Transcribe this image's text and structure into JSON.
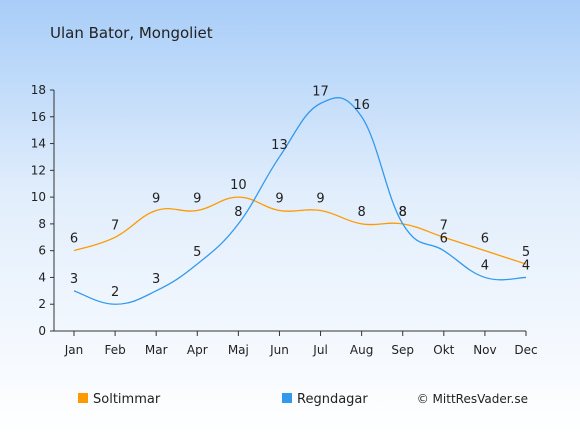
{
  "chart_data": {
    "type": "line",
    "title": "Ulan Bator, Mongoliet",
    "categories": [
      "Jan",
      "Feb",
      "Mar",
      "Apr",
      "Maj",
      "Jun",
      "Jul",
      "Aug",
      "Sep",
      "Okt",
      "Nov",
      "Dec"
    ],
    "ylim": [
      0,
      18
    ],
    "yticks": [
      0,
      2,
      4,
      6,
      8,
      10,
      12,
      14,
      16,
      18
    ],
    "grid": false,
    "legend_position": "bottom-left",
    "series": [
      {
        "name": "Soltimmar",
        "color": "#ff9900",
        "values": [
          6,
          7,
          9,
          9,
          10,
          9,
          9,
          8,
          8,
          7,
          6,
          5
        ]
      },
      {
        "name": "Regndagar",
        "color": "#3399ee",
        "values": [
          3,
          2,
          3,
          5,
          8,
          13,
          17,
          16,
          8,
          6,
          4,
          4
        ]
      }
    ]
  },
  "copyright": "© MittResVader.se"
}
